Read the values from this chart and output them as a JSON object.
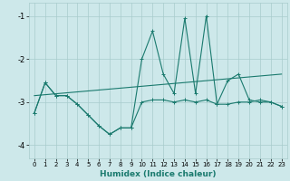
{
  "xlabel": "Humidex (Indice chaleur)",
  "xlim": [
    -0.5,
    23.5
  ],
  "ylim": [
    -4.3,
    -0.7
  ],
  "yticks": [
    -4,
    -3,
    -2,
    -1
  ],
  "xticks": [
    0,
    1,
    2,
    3,
    4,
    5,
    6,
    7,
    8,
    9,
    10,
    11,
    12,
    13,
    14,
    15,
    16,
    17,
    18,
    19,
    20,
    21,
    22,
    23
  ],
  "bg_color": "#cde8ea",
  "grid_color": "#a8cccc",
  "line_color": "#1a7a6e",
  "line1_y": [
    -3.25,
    -2.55,
    -2.85,
    -2.85,
    -3.05,
    -3.3,
    -3.55,
    -3.75,
    -3.6,
    -3.6,
    -3.0,
    -2.95,
    -2.95,
    -3.0,
    -2.95,
    -3.0,
    -2.95,
    -3.05,
    -3.05,
    -3.0,
    -3.0,
    -2.95,
    -3.0,
    -3.1
  ],
  "line2_y": [
    -3.25,
    -2.55,
    -2.85,
    -2.85,
    -3.05,
    -3.3,
    -3.55,
    -3.75,
    -3.6,
    -3.6,
    -2.0,
    -1.35,
    -2.35,
    -2.8,
    -1.05,
    -2.8,
    -1.0,
    -3.05,
    -2.5,
    -2.35,
    -2.95,
    -3.0,
    -3.0,
    -3.1
  ],
  "trend_x": [
    0,
    23
  ],
  "trend_y": [
    -2.85,
    -2.35
  ]
}
